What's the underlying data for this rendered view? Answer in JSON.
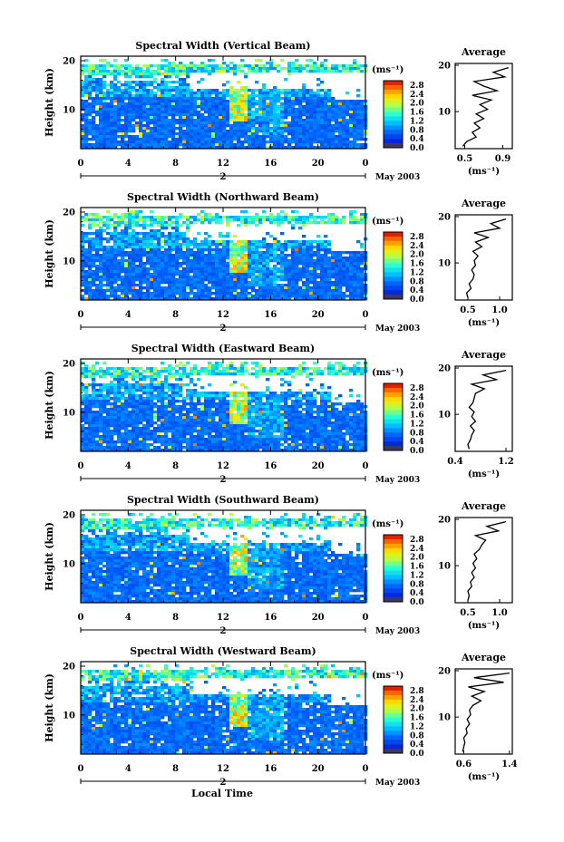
{
  "figure": {
    "x_axis_label": "Local Time",
    "date_label": "May 2003",
    "date_tick": "2",
    "colorbar_unit": "(ms⁻¹)",
    "avg_title": "Average",
    "avg_xlabel": "(ms⁻¹)",
    "ylabel": "Height (km)"
  },
  "chart_data": [
    {
      "type": "heatmap",
      "title": "Spectral Width (Vertical Beam)",
      "xlabel": "Local Time",
      "ylabel": "Height (km)",
      "x_ticks": [
        "0",
        "4",
        "8",
        "12",
        "16",
        "20",
        "0"
      ],
      "xlim": [
        0,
        24
      ],
      "ylim": [
        2,
        20
      ],
      "y_ticks": [
        "20",
        "10"
      ],
      "colorbar": {
        "unit": "(ms⁻¹)",
        "ticks": [
          "2.8",
          "2.4",
          "2.0",
          "1.6",
          "1.2",
          "0.8",
          "0.4",
          "0.0"
        ],
        "range": [
          0,
          3.0
        ]
      },
      "average_profile": {
        "title": "Average",
        "xlabel": "(ms⁻¹)",
        "x_ticks": [
          "0.5",
          "0.9"
        ],
        "x_tick_values": [
          0.5,
          0.9
        ],
        "xlim": [
          0.4,
          1.0
        ],
        "heights": [
          2.5,
          3.5,
          4.5,
          5.5,
          6.5,
          7.5,
          8.5,
          9.5,
          10.5,
          11.5,
          12.5,
          13.5,
          14.5,
          15.5,
          16.5,
          17.5,
          18.5,
          19.5
        ],
        "values": [
          0.48,
          0.52,
          0.62,
          0.58,
          0.66,
          0.6,
          0.7,
          0.62,
          0.74,
          0.66,
          0.78,
          0.58,
          0.84,
          0.7,
          0.6,
          0.92,
          0.8,
          0.96
        ]
      }
    },
    {
      "type": "heatmap",
      "title": "Spectral Width (Northward Beam)",
      "xlabel": "Local Time",
      "ylabel": "Height (km)",
      "x_ticks": [
        "0",
        "4",
        "8",
        "12",
        "16",
        "20",
        "0"
      ],
      "xlim": [
        0,
        24
      ],
      "ylim": [
        2,
        20
      ],
      "y_ticks": [
        "20",
        "10"
      ],
      "colorbar": {
        "unit": "(ms⁻¹)",
        "ticks": [
          "2.8",
          "2.4",
          "2.0",
          "1.6",
          "1.2",
          "0.8",
          "0.4",
          "0.0"
        ],
        "range": [
          0,
          3.0
        ]
      },
      "average_profile": {
        "title": "Average",
        "xlabel": "(ms⁻¹)",
        "x_ticks": [
          "0.5",
          "1.0"
        ],
        "x_tick_values": [
          0.5,
          1.0
        ],
        "xlim": [
          0.3,
          1.2
        ],
        "heights": [
          2.5,
          3.5,
          4.5,
          5.5,
          6.5,
          7.5,
          8.5,
          9.5,
          10.5,
          11.5,
          12.5,
          13.5,
          14.5,
          15.5,
          16.5,
          17.5,
          18.5,
          19.5
        ],
        "values": [
          0.5,
          0.48,
          0.55,
          0.52,
          0.58,
          0.6,
          0.56,
          0.62,
          0.6,
          0.66,
          0.58,
          0.72,
          0.62,
          0.82,
          0.6,
          1.0,
          0.86,
          1.1
        ]
      }
    },
    {
      "type": "heatmap",
      "title": "Spectral Width (Eastward Beam)",
      "xlabel": "Local Time",
      "ylabel": "Height (km)",
      "x_ticks": [
        "0",
        "4",
        "8",
        "12",
        "16",
        "20",
        "0"
      ],
      "xlim": [
        0,
        24
      ],
      "ylim": [
        2,
        20
      ],
      "y_ticks": [
        "20",
        "10"
      ],
      "colorbar": {
        "unit": "(ms⁻¹)",
        "ticks": [
          "2.8",
          "2.4",
          "2.0",
          "1.6",
          "1.2",
          "0.8",
          "0.4",
          "0.0"
        ],
        "range": [
          0,
          3.0
        ]
      },
      "average_profile": {
        "title": "Average",
        "xlabel": "(ms⁻¹)",
        "x_ticks": [
          "0.4",
          "1.2"
        ],
        "x_tick_values": [
          0.4,
          1.2
        ],
        "xlim": [
          0.4,
          1.3
        ],
        "heights": [
          2.5,
          3.5,
          4.5,
          5.5,
          6.5,
          7.5,
          8.5,
          9.5,
          10.5,
          11.5,
          12.5,
          13.5,
          14.5,
          15.5,
          16.5,
          17.5,
          18.5,
          19.5
        ],
        "values": [
          0.62,
          0.6,
          0.64,
          0.66,
          0.7,
          0.64,
          0.72,
          0.66,
          0.7,
          0.62,
          0.68,
          0.7,
          0.72,
          0.86,
          0.66,
          1.05,
          0.84,
          1.2
        ]
      }
    },
    {
      "type": "heatmap",
      "title": "Spectral Width (Southward Beam)",
      "xlabel": "Local Time",
      "ylabel": "Height (km)",
      "x_ticks": [
        "0",
        "4",
        "8",
        "12",
        "16",
        "20",
        "0"
      ],
      "xlim": [
        0,
        24
      ],
      "ylim": [
        2,
        20
      ],
      "y_ticks": [
        "20",
        "10"
      ],
      "colorbar": {
        "unit": "(ms⁻¹)",
        "ticks": [
          "2.8",
          "2.4",
          "2.0",
          "1.6",
          "1.2",
          "0.8",
          "0.4",
          "0.0"
        ],
        "range": [
          0,
          3.0
        ]
      },
      "average_profile": {
        "title": "Average",
        "xlabel": "(ms⁻¹)",
        "x_ticks": [
          "0.5",
          "1.0"
        ],
        "x_tick_values": [
          0.5,
          1.0
        ],
        "xlim": [
          0.3,
          1.2
        ],
        "heights": [
          2.5,
          3.5,
          4.5,
          5.5,
          6.5,
          7.5,
          8.5,
          9.5,
          10.5,
          11.5,
          12.5,
          13.5,
          14.5,
          15.5,
          16.5,
          17.5,
          18.5,
          19.5
        ],
        "values": [
          0.5,
          0.52,
          0.5,
          0.56,
          0.54,
          0.6,
          0.56,
          0.62,
          0.58,
          0.64,
          0.6,
          0.68,
          0.72,
          0.78,
          0.62,
          0.98,
          0.8,
          1.1
        ]
      }
    },
    {
      "type": "heatmap",
      "title": "Spectral Width (Westward Beam)",
      "xlabel": "Local Time",
      "ylabel": "Height (km)",
      "x_ticks": [
        "0",
        "4",
        "8",
        "12",
        "16",
        "20",
        "0"
      ],
      "xlim": [
        0,
        24
      ],
      "ylim": [
        2,
        20
      ],
      "y_ticks": [
        "20",
        "10"
      ],
      "colorbar": {
        "unit": "(ms⁻¹)",
        "ticks": [
          "2.8",
          "2.4",
          "2.0",
          "1.6",
          "1.2",
          "0.8",
          "0.4",
          "0.0"
        ],
        "range": [
          0,
          3.0
        ]
      },
      "average_profile": {
        "title": "Average",
        "xlabel": "(ms⁻¹)",
        "x_ticks": [
          "0.6",
          "1.4"
        ],
        "x_tick_values": [
          0.6,
          1.4
        ],
        "xlim": [
          0.45,
          1.45
        ],
        "heights": [
          2.5,
          3.5,
          4.5,
          5.5,
          6.5,
          7.5,
          8.5,
          9.5,
          10.5,
          11.5,
          12.5,
          13.5,
          14.5,
          15.5,
          16.5,
          17.5,
          18.5,
          19.5
        ],
        "values": [
          0.58,
          0.6,
          0.62,
          0.6,
          0.66,
          0.64,
          0.7,
          0.66,
          0.72,
          0.7,
          0.76,
          0.9,
          0.74,
          0.96,
          0.68,
          1.3,
          0.78,
          1.4
        ]
      }
    }
  ]
}
